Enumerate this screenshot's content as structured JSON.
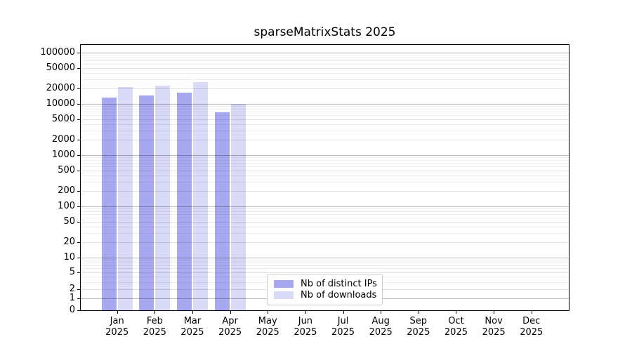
{
  "figure": {
    "title": "sparseMatrixStats 2025",
    "background": "#ffffff"
  },
  "chart_data": {
    "type": "bar",
    "title": "sparseMatrixStats 2025",
    "categories": [
      "Jan",
      "Feb",
      "Mar",
      "Apr",
      "May",
      "Jun",
      "Jul",
      "Aug",
      "Sep",
      "Oct",
      "Nov",
      "Dec"
    ],
    "year_label": "2025",
    "series": [
      {
        "name": "Nb of distinct IPs",
        "color": "#a8a8f0",
        "values": [
          13300,
          14500,
          16500,
          6900,
          null,
          null,
          null,
          null,
          null,
          null,
          null,
          null
        ]
      },
      {
        "name": "Nb of downloads",
        "color": "#d9d9f8",
        "values": [
          21300,
          22800,
          27000,
          10100,
          null,
          null,
          null,
          null,
          null,
          null,
          null,
          null
        ]
      }
    ],
    "xlabel": "",
    "ylabel": "",
    "yscale": "symlog",
    "ylim": [
      0,
      145000
    ],
    "yticks": [
      100000,
      50000,
      20000,
      10000,
      5000,
      2000,
      1000,
      500,
      200,
      100,
      50,
      20,
      10,
      5,
      2,
      1,
      0
    ],
    "grid": true,
    "legend_position": "lower-center"
  },
  "colors": {
    "bar_distinct_ips": "#a8a8f0",
    "bar_downloads": "#d9d9f8",
    "grid_major": "#b8b8b8",
    "grid_labeled": "#e3e3e3",
    "grid_minor": "#ededed",
    "spine": "#000000",
    "text": "#000000"
  }
}
